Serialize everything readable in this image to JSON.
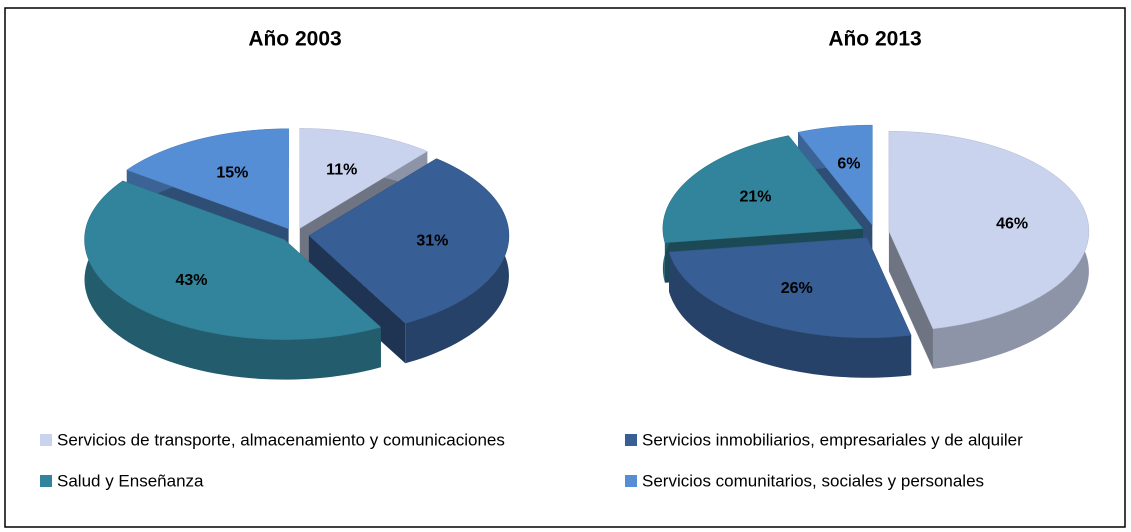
{
  "legend": {
    "categories": [
      "Servicios de transporte, almacenamiento y comunicaciones",
      "Servicios inmobiliarios, empresariales y de alquiler",
      "Salud y Enseñanza",
      "Servicios comunitarios, sociales y personales"
    ],
    "colors": [
      "#c9d3ee",
      "#375e95",
      "#31849b",
      "#558ed5"
    ]
  },
  "chart_data": [
    {
      "type": "pie",
      "title": "Año 2003",
      "values": [
        11,
        31,
        43,
        15
      ],
      "value_labels": [
        "11%",
        "31%",
        "43%",
        "15%"
      ]
    },
    {
      "type": "pie",
      "title": "Año 2013",
      "values": [
        46,
        26,
        21,
        6
      ],
      "value_labels": [
        "46%",
        "26%",
        "21%",
        "6%"
      ]
    }
  ]
}
